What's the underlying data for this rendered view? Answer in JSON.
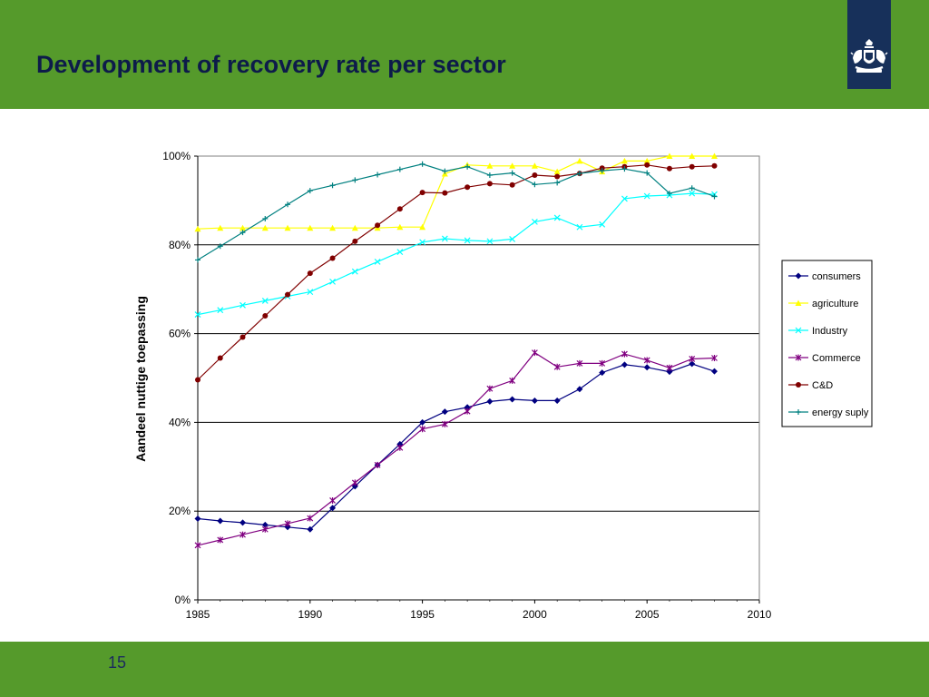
{
  "slide": {
    "title": "Development of recovery rate per sector",
    "page_number": "15"
  },
  "colors": {
    "header_green": "#559a2b",
    "emblem_blue": "#17305a",
    "title_text": "#0d1b4a"
  },
  "chart_data": {
    "type": "line",
    "xlabel": "",
    "ylabel": "Aandeel nuttige toepassing",
    "xlim": [
      1985,
      2010
    ],
    "ylim": [
      0,
      100
    ],
    "x_ticks": [
      "1985",
      "1990",
      "1995",
      "2000",
      "2005",
      "2010"
    ],
    "y_ticks": [
      "0%",
      "20%",
      "40%",
      "60%",
      "80%",
      "100%"
    ],
    "grid": "horizontal",
    "legend_position": "right",
    "x": [
      1985,
      1986,
      1987,
      1988,
      1989,
      1990,
      1991,
      1992,
      1993,
      1994,
      1995,
      1996,
      1997,
      1998,
      1999,
      2000,
      2001,
      2002,
      2003,
      2004,
      2005,
      2006,
      2007,
      2008
    ],
    "series": [
      {
        "name": "consumers",
        "color": "#000080",
        "marker": "diamond",
        "values": [
          18.3,
          17.8,
          17.4,
          16.9,
          16.4,
          15.9,
          20.7,
          25.6,
          30.4,
          35.1,
          40.0,
          42.4,
          43.4,
          44.7,
          45.2,
          44.9,
          44.9,
          47.5,
          51.2,
          53.0,
          52.4,
          51.4,
          53.2,
          51.5
        ]
      },
      {
        "name": "agriculture",
        "color": "#ffff00",
        "marker": "triangle",
        "values": [
          83.6,
          83.8,
          83.8,
          83.8,
          83.8,
          83.8,
          83.8,
          83.8,
          83.8,
          84.0,
          84.0,
          96.0,
          98.0,
          97.8,
          97.8,
          97.8,
          96.5,
          98.9,
          96.5,
          98.9,
          98.9,
          100.0,
          100.0,
          100.0
        ]
      },
      {
        "name": "Industry",
        "color": "#00ffff",
        "marker": "x",
        "values": [
          64.3,
          65.3,
          66.4,
          67.4,
          68.4,
          69.4,
          71.7,
          74.0,
          76.2,
          78.4,
          80.6,
          81.4,
          81.0,
          80.8,
          81.3,
          85.2,
          86.1,
          84.0,
          84.6,
          90.4,
          91.0,
          91.2,
          91.6,
          91.4
        ]
      },
      {
        "name": "Commerce",
        "color": "#800080",
        "marker": "star",
        "values": [
          12.3,
          13.5,
          14.7,
          15.9,
          17.2,
          18.4,
          22.4,
          26.4,
          30.4,
          34.3,
          38.5,
          39.6,
          42.5,
          47.6,
          49.4,
          55.7,
          52.5,
          53.3,
          53.3,
          55.4,
          54.0,
          52.3,
          54.3,
          54.5
        ]
      },
      {
        "name": "C&D",
        "color": "#800000",
        "marker": "circle",
        "values": [
          49.6,
          54.5,
          59.2,
          64.0,
          68.8,
          73.6,
          77.0,
          80.8,
          84.4,
          88.1,
          91.8,
          91.7,
          93.0,
          93.8,
          93.5,
          95.7,
          95.4,
          96.1,
          97.3,
          97.6,
          98.0,
          97.2,
          97.6,
          97.8
        ]
      },
      {
        "name": "energy suply",
        "color": "#008080",
        "marker": "plus",
        "values": [
          76.6,
          79.7,
          82.8,
          85.9,
          89.1,
          92.2,
          93.4,
          94.6,
          95.8,
          97.0,
          98.2,
          96.6,
          97.6,
          95.7,
          96.2,
          93.6,
          94.0,
          96.1,
          96.7,
          97.1,
          96.2,
          91.6,
          92.8,
          90.9
        ]
      }
    ]
  }
}
